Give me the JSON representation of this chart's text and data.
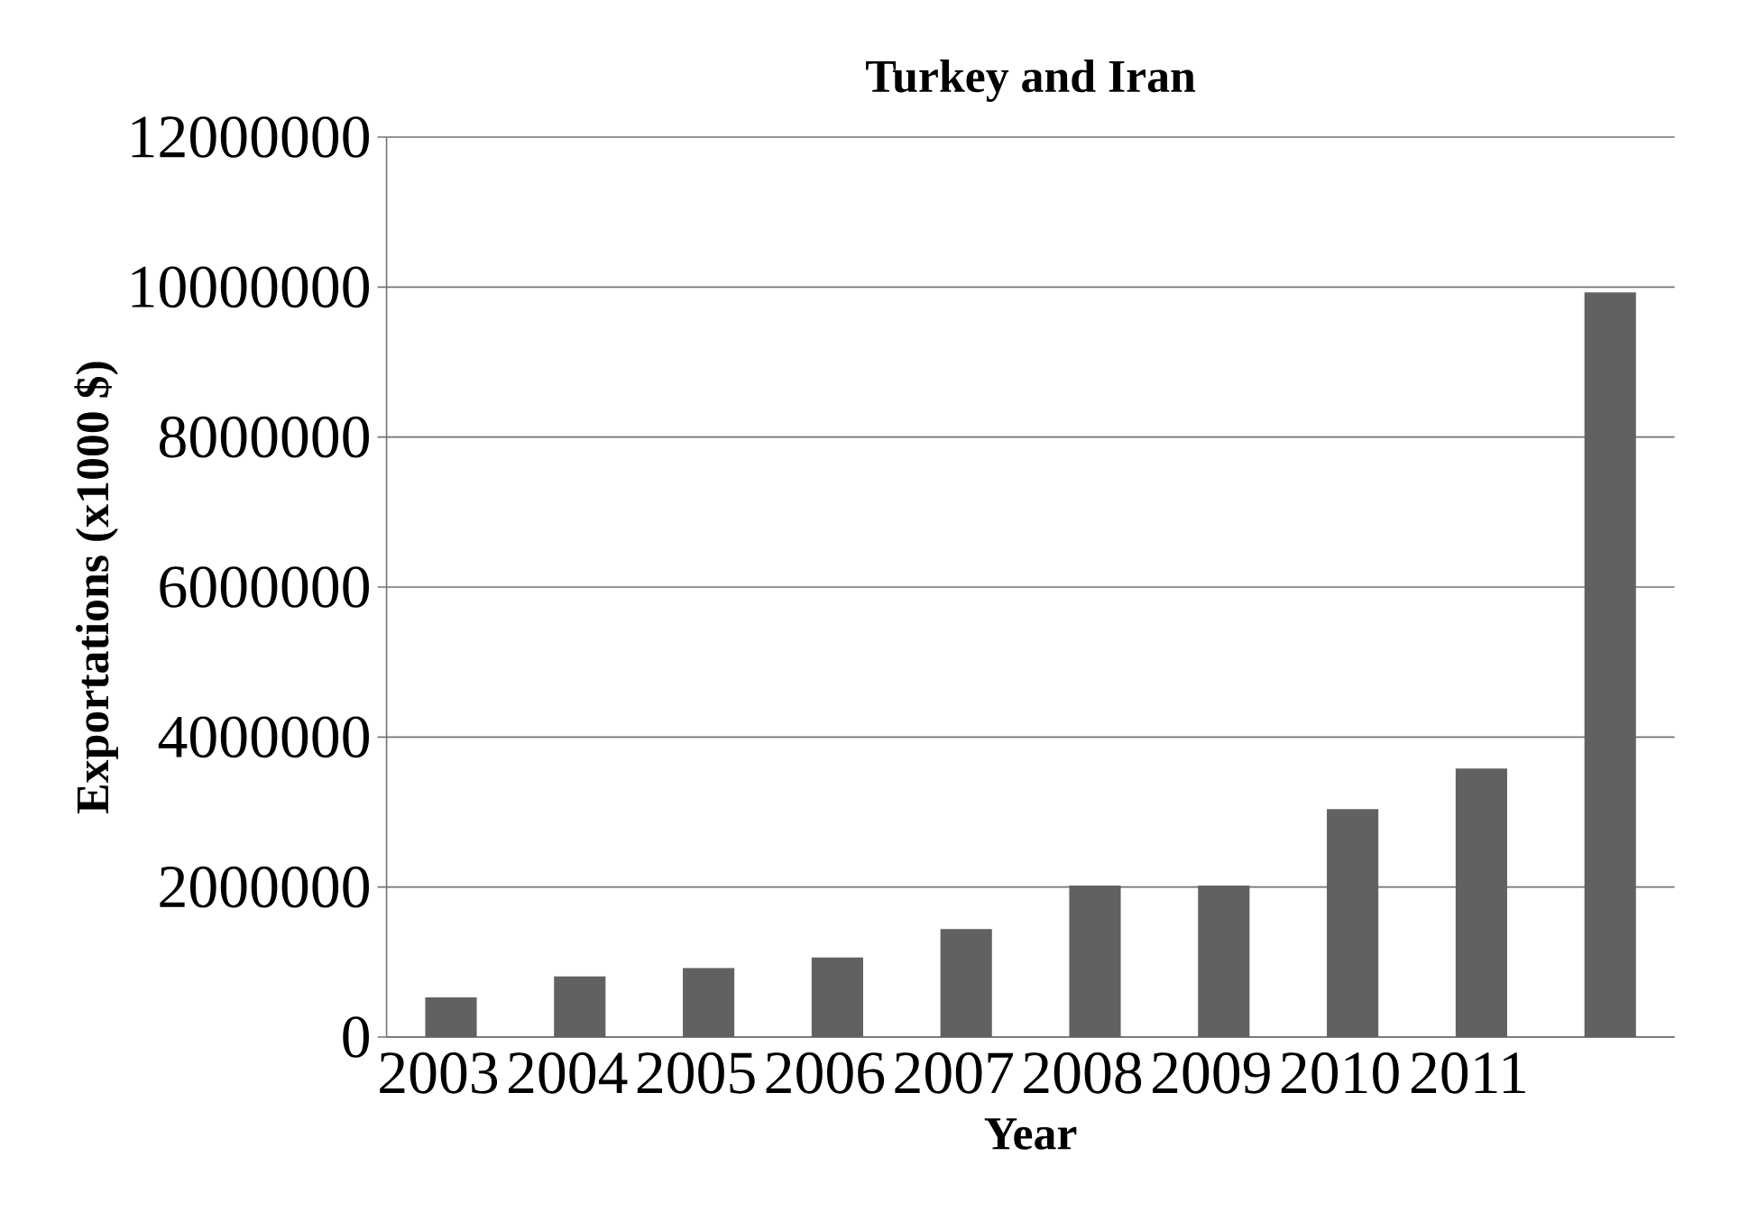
{
  "chart_data": {
    "type": "bar",
    "title": "Turkey and Iran",
    "xlabel": "Year",
    "ylabel": "Exportations  (x1000 $)",
    "categories": [
      "2003",
      "2004",
      "2005",
      "2006",
      "2007",
      "2008",
      "2009",
      "2010",
      "2011",
      null
    ],
    "values": [
      530000,
      810000,
      920000,
      1060000,
      1440000,
      2020000,
      2020000,
      3040000,
      3580000,
      9930000
    ],
    "color": "#616161",
    "ylim": [
      0,
      12000000
    ],
    "yticks": [
      0,
      2000000,
      4000000,
      6000000,
      8000000,
      10000000,
      12000000
    ],
    "grid": "y"
  }
}
